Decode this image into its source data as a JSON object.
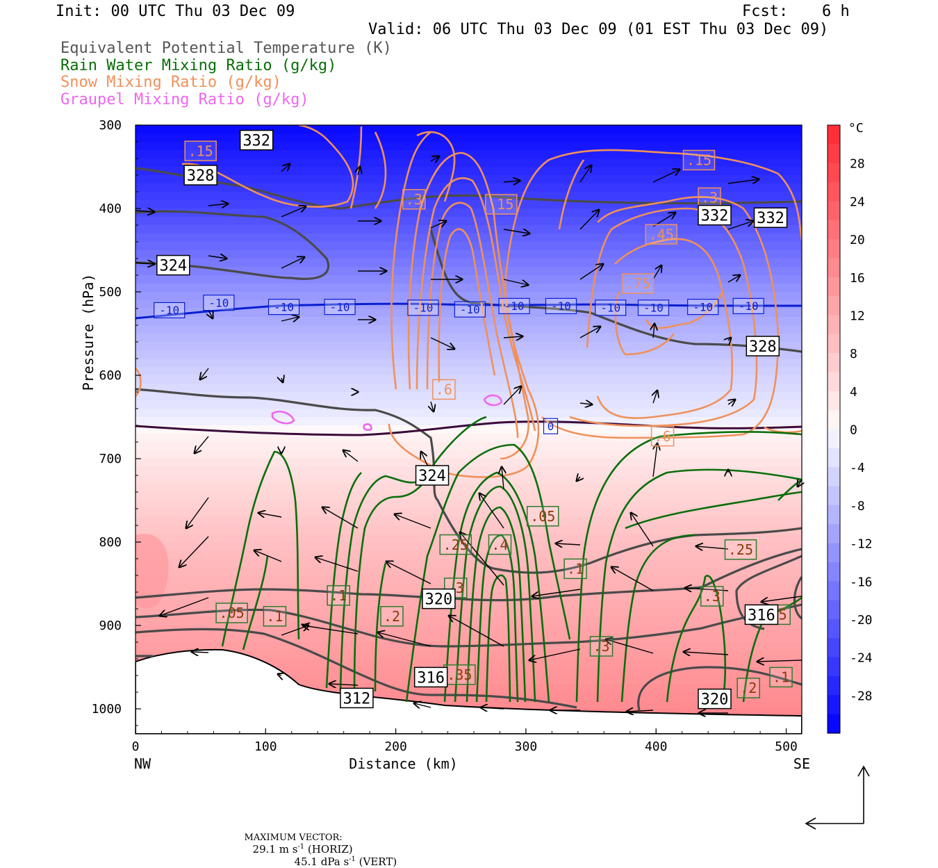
{
  "header": {
    "init": "Init: 00 UTC Thu 03 Dec 09",
    "fcst_label": "Fcst:",
    "fcst_value": "6 h",
    "valid": "Valid: 06 UTC Thu 03 Dec 09 (01 EST Thu 03 Dec 09)"
  },
  "legend": [
    {
      "label": "Equivalent Potential Temperature (K)",
      "color": "#555555"
    },
    {
      "label": "Rain Water Mixing Ratio (g/kg)",
      "color": "#0a6e0a"
    },
    {
      "label": "Snow Mixing Ratio (g/kg)",
      "color": "#f0905a"
    },
    {
      "label": "Graupel Mixing Ratio (g/kg)",
      "color": "#ee66ee"
    }
  ],
  "footer": {
    "max_vector_label": "MAXIMUM VECTOR:",
    "horiz": "29.1 m s",
    "horiz_tail": " (HORIZ)",
    "vert": "45.1 dPa s",
    "vert_tail": " (VERT)",
    "exp": "-1"
  },
  "chart_data": {
    "type": "heatmap",
    "xlabel": "Distance (km)",
    "ylabel": "Pressure (hPa)",
    "xlim": [
      0,
      512
    ],
    "ylim": [
      1030,
      300
    ],
    "x_ticks": [
      0,
      100,
      200,
      300,
      400,
      500
    ],
    "y_ticks": [
      300,
      400,
      500,
      600,
      700,
      800,
      900,
      1000
    ],
    "x_end_labels": {
      "left": "NW",
      "right": "SE"
    },
    "colorbar": {
      "unit": "°C",
      "ticks": [
        28,
        24,
        20,
        16,
        12,
        8,
        4,
        0,
        -4,
        -8,
        -12,
        -16,
        -20,
        -24,
        -28
      ],
      "range": [
        -32,
        32
      ]
    },
    "theta_e_labels": [
      {
        "text": "332",
        "x": 93,
        "p": 318
      },
      {
        "text": "328",
        "x": 50,
        "p": 360
      },
      {
        "text": "324",
        "x": 29,
        "p": 468
      },
      {
        "text": "332",
        "x": 445,
        "p": 408
      },
      {
        "text": "332",
        "x": 488,
        "p": 411
      },
      {
        "text": "328",
        "x": 482,
        "p": 565
      },
      {
        "text": "324",
        "x": 228,
        "p": 720
      },
      {
        "text": "320",
        "x": 233,
        "p": 868
      },
      {
        "text": "316",
        "x": 227,
        "p": 962
      },
      {
        "text": "312",
        "x": 170,
        "p": 987
      },
      {
        "text": "320",
        "x": 445,
        "p": 988
      },
      {
        "text": "316",
        "x": 481,
        "p": 887
      }
    ],
    "isotherm_labels": [
      {
        "text": "-10",
        "x": 26,
        "p": 522
      },
      {
        "text": "-10",
        "x": 64,
        "p": 513
      },
      {
        "text": "-10",
        "x": 114,
        "p": 518
      },
      {
        "text": "-10",
        "x": 157,
        "p": 518
      },
      {
        "text": "-10",
        "x": 221,
        "p": 519
      },
      {
        "text": "-10",
        "x": 257,
        "p": 521
      },
      {
        "text": "-10",
        "x": 291,
        "p": 517
      },
      {
        "text": "-10",
        "x": 327,
        "p": 517
      },
      {
        "text": "-10",
        "x": 365,
        "p": 519
      },
      {
        "text": "-10",
        "x": 398,
        "p": 519
      },
      {
        "text": "-10",
        "x": 436,
        "p": 518
      },
      {
        "text": "-10",
        "x": 471,
        "p": 517
      },
      {
        "text": "0",
        "x": 319,
        "p": 661
      }
    ],
    "rain_labels": [
      {
        "text": ".05",
        "x": 313,
        "p": 769
      },
      {
        "text": ".25",
        "x": 246,
        "p": 803
      },
      {
        "text": ".4",
        "x": 280,
        "p": 803
      },
      {
        "text": ".1",
        "x": 338,
        "p": 832
      },
      {
        "text": ".3",
        "x": 246,
        "p": 855
      },
      {
        "text": ".1",
        "x": 156,
        "p": 864
      },
      {
        "text": ".05",
        "x": 74,
        "p": 885
      },
      {
        "text": ".1",
        "x": 107,
        "p": 889
      },
      {
        "text": ".2",
        "x": 197,
        "p": 889
      },
      {
        "text": ".35",
        "x": 249,
        "p": 959
      },
      {
        "text": ".3",
        "x": 358,
        "p": 925
      },
      {
        "text": ".25",
        "x": 465,
        "p": 809
      },
      {
        "text": ".3",
        "x": 443,
        "p": 865
      },
      {
        "text": ".15",
        "x": 491,
        "p": 887
      },
      {
        "text": ".1",
        "x": 496,
        "p": 962
      },
      {
        "text": ".2",
        "x": 471,
        "p": 975
      }
    ],
    "snow_labels": [
      {
        "text": ".15",
        "x": 50,
        "p": 331
      },
      {
        "text": ".3",
        "x": 214,
        "p": 389
      },
      {
        "text": ".15",
        "x": 281,
        "p": 395
      },
      {
        "text": ".15",
        "x": 433,
        "p": 342
      },
      {
        "text": ".3",
        "x": 441,
        "p": 387
      },
      {
        "text": ".45",
        "x": 404,
        "p": 431
      },
      {
        "text": ".75",
        "x": 386,
        "p": 490
      },
      {
        "text": ".6",
        "x": 237,
        "p": 617
      },
      {
        "text": ".6",
        "x": 405,
        "p": 673
      }
    ]
  }
}
